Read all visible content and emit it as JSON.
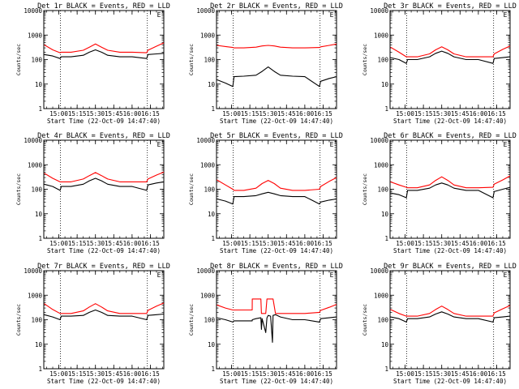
{
  "chart_data": {
    "type": "line",
    "layout": "3x3 grid of panels",
    "common": {
      "xlabel": "Start Time (22-Oct-09 14:47:40)",
      "ylabel": "Counts/sec",
      "y_scale": "log",
      "ylim": [
        1,
        10000
      ],
      "y_ticks": [
        "1",
        "10",
        "100",
        "1000",
        "10000"
      ],
      "x_ticks": [
        "15:00",
        "15:15",
        "15:30",
        "15:45",
        "16:00",
        "16:15"
      ],
      "x_tick_minutes": [
        60,
        75,
        90,
        105,
        120,
        135
      ],
      "xlim_minutes": [
        47.67,
        146
      ],
      "dotted_vertical_lines_minutes": [
        61.3,
        132.5
      ],
      "legend": "black line = Events, red line = LLD",
      "series_colors": {
        "Events": "#000000",
        "LLD": "#ff0000"
      }
    },
    "panels": [
      {
        "title": "Det 1r BLACK = Events, RED = LLD",
        "corner_mark": "E",
        "series": [
          {
            "name": "Events",
            "x": [
              48,
              55,
              61,
              62,
              70,
              80,
              85,
              90,
              95,
              100,
              110,
              120,
              132,
              133,
              140,
              146
            ],
            "y": [
              160,
              140,
              110,
              130,
              130,
              150,
              200,
              250,
              200,
              150,
              130,
              130,
              110,
              160,
              170,
              180
            ]
          },
          {
            "name": "LLD",
            "x": [
              48,
              55,
              61,
              62,
              70,
              80,
              85,
              90,
              95,
              100,
              110,
              120,
              132,
              133,
              140,
              146
            ],
            "y": [
              400,
              250,
              190,
              200,
              200,
              240,
              320,
              430,
              320,
              240,
              200,
              200,
              190,
              240,
              350,
              480
            ]
          }
        ]
      },
      {
        "title": "Det 2r BLACK = Events, RED = LLD",
        "corner_mark": "E",
        "series": [
          {
            "name": "Events",
            "x": [
              48,
              55,
              61,
              62,
              70,
              80,
              85,
              90,
              95,
              100,
              110,
              120,
              132,
              133,
              140,
              146
            ],
            "y": [
              15,
              11,
              8,
              20,
              21,
              23,
              33,
              50,
              33,
              23,
              21,
              20,
              8,
              13,
              17,
              20
            ]
          },
          {
            "name": "LLD",
            "x": [
              48,
              55,
              61,
              62,
              70,
              80,
              85,
              90,
              95,
              100,
              110,
              120,
              132,
              133,
              140,
              146
            ],
            "y": [
              380,
              340,
              310,
              300,
              300,
              320,
              360,
              380,
              360,
              320,
              300,
              300,
              310,
              330,
              380,
              430
            ]
          }
        ]
      },
      {
        "title": "Det 3r BLACK = Events, RED = LLD",
        "corner_mark": "E",
        "series": [
          {
            "name": "Events",
            "x": [
              48,
              55,
              61,
              62,
              70,
              80,
              85,
              90,
              95,
              100,
              110,
              120,
              132,
              133,
              140,
              146
            ],
            "y": [
              120,
              100,
              70,
              100,
              100,
              130,
              180,
              220,
              180,
              130,
              100,
              100,
              70,
              110,
              120,
              130
            ]
          },
          {
            "name": "LLD",
            "x": [
              48,
              55,
              61,
              62,
              70,
              80,
              85,
              90,
              95,
              100,
              110,
              120,
              132,
              133,
              140,
              146
            ],
            "y": [
              320,
              200,
              130,
              130,
              130,
              170,
              250,
              330,
              250,
              170,
              130,
              130,
              130,
              170,
              260,
              360
            ]
          }
        ]
      },
      {
        "title": "Det 4r BLACK = Events, RED = LLD",
        "corner_mark": "E",
        "series": [
          {
            "name": "Events",
            "x": [
              48,
              55,
              61,
              62,
              70,
              80,
              85,
              90,
              95,
              100,
              110,
              120,
              132,
              133,
              140,
              146
            ],
            "y": [
              160,
              130,
              90,
              130,
              130,
              160,
              220,
              280,
              220,
              160,
              130,
              130,
              90,
              150,
              180,
              200
            ]
          },
          {
            "name": "LLD",
            "x": [
              48,
              55,
              61,
              62,
              70,
              80,
              85,
              90,
              95,
              100,
              110,
              120,
              132,
              133,
              140,
              146
            ],
            "y": [
              450,
              280,
              200,
              200,
              200,
              260,
              360,
              480,
              360,
              260,
              200,
              200,
              200,
              260,
              380,
              500
            ]
          }
        ]
      },
      {
        "title": "Det 5r BLACK = Events, RED = LLD",
        "corner_mark": "E",
        "series": [
          {
            "name": "Events",
            "x": [
              48,
              55,
              61,
              62,
              70,
              80,
              85,
              90,
              95,
              100,
              110,
              120,
              132,
              133,
              140,
              146
            ],
            "y": [
              40,
              33,
              25,
              50,
              50,
              55,
              65,
              75,
              65,
              55,
              50,
              50,
              25,
              30,
              36,
              40
            ]
          },
          {
            "name": "LLD",
            "x": [
              48,
              55,
              61,
              62,
              70,
              80,
              85,
              90,
              95,
              100,
              110,
              120,
              132,
              133,
              140,
              146
            ],
            "y": [
              240,
              150,
              100,
              90,
              90,
              110,
              170,
              230,
              170,
              110,
              90,
              90,
              100,
              130,
              210,
              300
            ]
          }
        ]
      },
      {
        "title": "Det 6r BLACK = Events, RED = LLD",
        "corner_mark": "E",
        "series": [
          {
            "name": "Events",
            "x": [
              48,
              55,
              61,
              62,
              70,
              80,
              85,
              90,
              95,
              100,
              110,
              120,
              132,
              133,
              140,
              146
            ],
            "y": [
              70,
              60,
              45,
              90,
              90,
              110,
              150,
              180,
              150,
              110,
              90,
              90,
              45,
              80,
              100,
              120
            ]
          },
          {
            "name": "LLD",
            "x": [
              48,
              55,
              61,
              62,
              70,
              80,
              85,
              90,
              95,
              100,
              110,
              120,
              132,
              133,
              140,
              146
            ],
            "y": [
              200,
              150,
              120,
              115,
              115,
              150,
              230,
              320,
              230,
              150,
              115,
              115,
              120,
              160,
              240,
              350
            ]
          }
        ]
      },
      {
        "title": "Det 7r BLACK = Events, RED = LLD",
        "corner_mark": "E",
        "series": [
          {
            "name": "Events",
            "x": [
              48,
              55,
              61,
              62,
              70,
              80,
              85,
              90,
              95,
              100,
              110,
              120,
              132,
              133,
              140,
              146
            ],
            "y": [
              160,
              130,
              100,
              140,
              140,
              150,
              200,
              250,
              200,
              150,
              140,
              140,
              100,
              150,
              160,
              170
            ]
          },
          {
            "name": "LLD",
            "x": [
              48,
              55,
              61,
              62,
              70,
              80,
              85,
              90,
              95,
              100,
              110,
              120,
              132,
              133,
              140,
              146
            ],
            "y": [
              450,
              260,
              180,
              180,
              180,
              230,
              330,
              450,
              330,
              230,
              180,
              180,
              180,
              240,
              360,
              480
            ]
          }
        ]
      },
      {
        "title": "Det 8r BLACK = Events, RED = LLD",
        "corner_mark": "E",
        "series": [
          {
            "name": "Events",
            "x": [
              48,
              55,
              61,
              62,
              70,
              76.9,
              77,
              80,
              84,
              84.5,
              85,
              88,
              89,
              90,
              92,
              93.5,
              94,
              96,
              100,
              110,
              120,
              132,
              133,
              140,
              146
            ],
            "y": [
              120,
              100,
              80,
              90,
              90,
              90,
              100,
              110,
              120,
              40,
              110,
              30,
              120,
              150,
              140,
              12,
              150,
              160,
              130,
              100,
              100,
              80,
              110,
              120,
              130
            ]
          },
          {
            "name": "LLD",
            "x": [
              48,
              55,
              61,
              62,
              70,
              76.9,
              77,
              80,
              84,
              84.5,
              85,
              88,
              89,
              90,
              92,
              93.5,
              94,
              96,
              100,
              110,
              120,
              132,
              133,
              140,
              146
            ],
            "y": [
              400,
              300,
              250,
              250,
              250,
              250,
              700,
              700,
              700,
              180,
              180,
              180,
              700,
              700,
              700,
              700,
              700,
              180,
              180,
              180,
              180,
              200,
              240,
              320,
              420
            ]
          }
        ]
      },
      {
        "title": "Det 9r BLACK = Events, RED = LLD",
        "corner_mark": "E",
        "series": [
          {
            "name": "Events",
            "x": [
              48,
              55,
              61,
              62,
              70,
              80,
              85,
              90,
              95,
              100,
              110,
              120,
              132,
              133,
              140,
              146
            ],
            "y": [
              130,
              110,
              80,
              110,
              110,
              130,
              170,
              210,
              170,
              130,
              110,
              110,
              80,
              120,
              130,
              140
            ]
          },
          {
            "name": "LLD",
            "x": [
              48,
              55,
              61,
              62,
              70,
              80,
              85,
              90,
              95,
              100,
              110,
              120,
              132,
              133,
              140,
              146
            ],
            "y": [
              260,
              180,
              140,
              140,
              140,
              180,
              260,
              360,
              260,
              180,
              140,
              140,
              140,
              190,
              280,
              380
            ]
          }
        ]
      }
    ]
  }
}
